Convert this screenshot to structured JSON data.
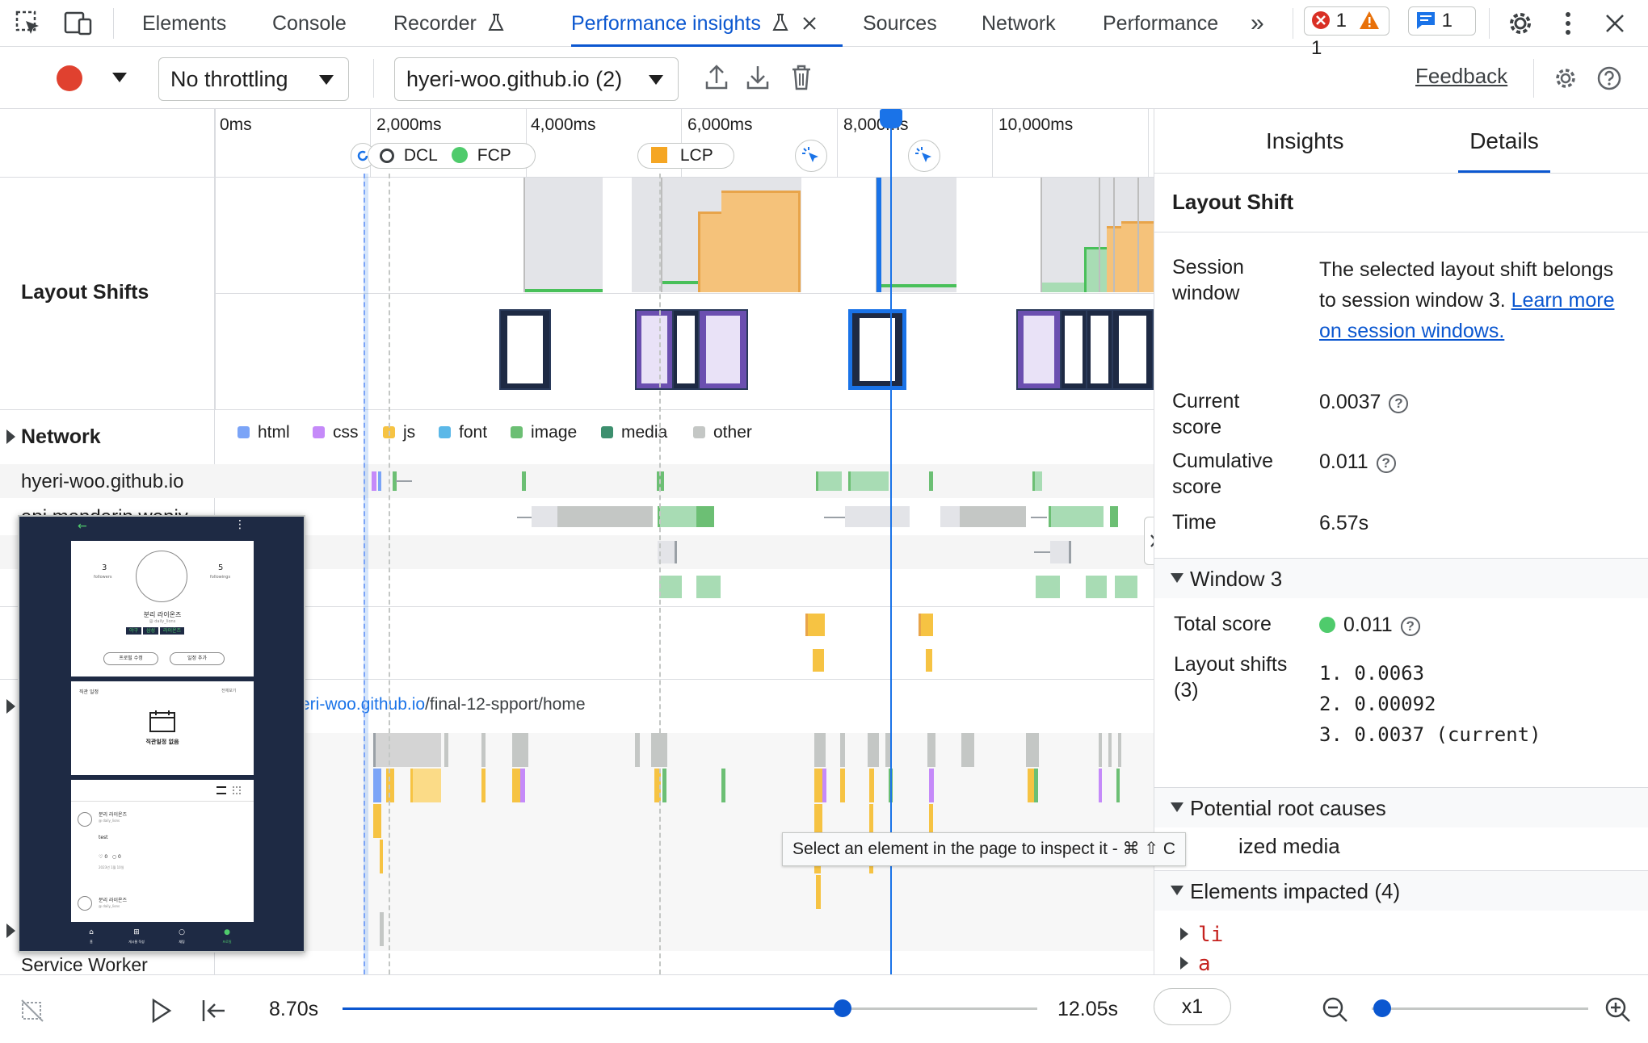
{
  "tabs": {
    "elements": "Elements",
    "console": "Console",
    "recorder": "Recorder",
    "performance_insights": "Performance insights",
    "sources": "Sources",
    "network": "Network",
    "performance": "Performance",
    "more": "»"
  },
  "badges": {
    "errors": "1",
    "warnings": "1",
    "messages": "1"
  },
  "toolbar": {
    "throttling": "No throttling",
    "recording": "hyeri-woo.github.io (2)",
    "feedback": "Feedback"
  },
  "ruler": {
    "ticks": [
      "0ms",
      "2,000ms",
      "4,000ms",
      "6,000ms",
      "8,000ms",
      "10,000ms"
    ],
    "markers": {
      "dcl": "DCL",
      "fcp": "FCP",
      "lcp": "LCP"
    }
  },
  "tracks": {
    "layout_shifts": "Layout Shifts",
    "network": "Network",
    "network_rows": [
      "hyeri-woo.github.io",
      "api.mandarin.weniv"
    ],
    "main_url_host": "eri-woo.github.io",
    "main_url_path": "/final-12-spport/home",
    "service_worker": "Service Worker"
  },
  "legend": [
    {
      "label": "html",
      "color": "#7ba4f7"
    },
    {
      "label": "css",
      "color": "#c58af9"
    },
    {
      "label": "js",
      "color": "#f6c343"
    },
    {
      "label": "font",
      "color": "#5bb8e8"
    },
    {
      "label": "image",
      "color": "#6cbf74"
    },
    {
      "label": "media",
      "color": "#3d8f6e"
    },
    {
      "label": "other",
      "color": "#c4c7c5"
    }
  ],
  "preview": {
    "followers_count": "3",
    "followers_label": "followers",
    "followings_count": "5",
    "followings_label": "followings",
    "name": "분리 라이온즈",
    "handle": "@ daily_lions",
    "tags": [
      "야구",
      "삼성",
      "라이온즈"
    ],
    "edit_profile": "프로필 수정",
    "add_schedule": "일정 추가",
    "schedule_title": "직관 일정",
    "schedule_more": "전체보기",
    "no_schedule": "직관일정 없음",
    "post_author": "분리 라이온즈",
    "post_handle": "@ daily_lions",
    "post_text": "test",
    "post_date": "2023년 1월 10일",
    "likes": "0",
    "comments": "0",
    "nav": [
      "홈",
      "게시물 작성",
      "채팅",
      "프로필"
    ]
  },
  "tooltip": "Select an element in the page to inspect it - ⌘ ⇧ C",
  "right_panel": {
    "tabs": {
      "insights": "Insights",
      "details": "Details"
    },
    "title": "Layout Shift",
    "session_window_key": "Session window",
    "session_window_text": "The selected layout shift belongs to session window 3.",
    "session_window_link": "Learn more on session windows.",
    "current_score_key": "Current score",
    "current_score": "0.0037",
    "cumulative_score_key": "Cumulative score",
    "cumulative_score": "0.011",
    "time_key": "Time",
    "time": "6.57s",
    "window_header": "Window 3",
    "total_score_key": "Total score",
    "total_score": "0.011",
    "layout_shifts_key": "Layout shifts (3)",
    "layout_shifts": [
      "1. 0.0063",
      "2. 0.00092",
      "3. 0.0037 (current)"
    ],
    "root_causes_header": "Potential root causes",
    "root_cause_text": "ized media",
    "elements_header": "Elements impacted (4)",
    "elements": [
      "li",
      "a"
    ]
  },
  "playback": {
    "current_time": "8.70s",
    "progress": 0.72,
    "end_time": "12.05s",
    "speed": "x1",
    "zoom_level": 0.05
  },
  "colors": {
    "accent": "#0b57d0",
    "error": "#d93025",
    "warning": "#e8710a",
    "shift_orange": "#f5c27a",
    "green_good": "#1e8e3e"
  }
}
